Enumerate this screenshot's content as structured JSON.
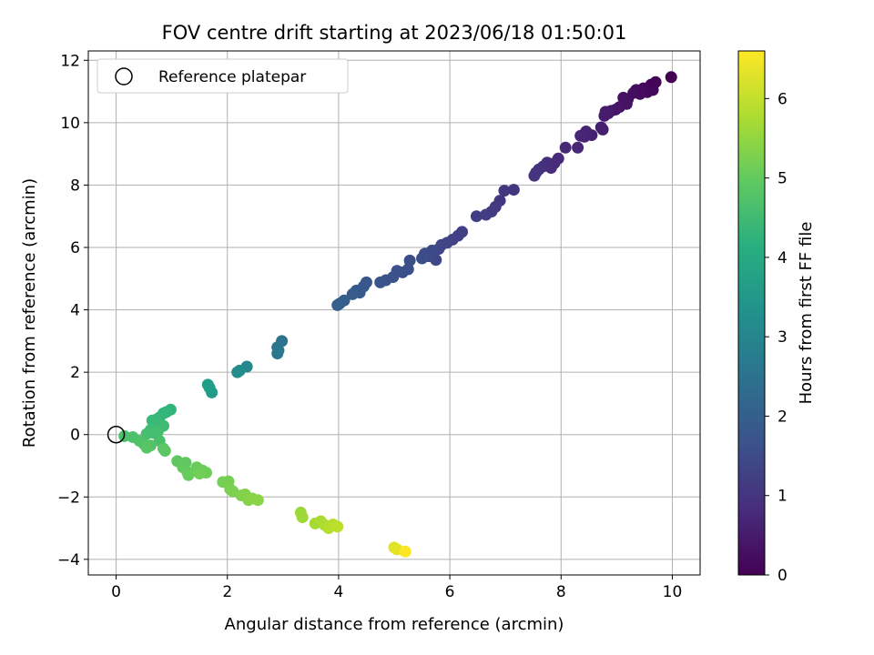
{
  "chart_data": {
    "type": "scatter",
    "title": "FOV centre drift starting at 2023/06/18 01:50:01",
    "xlabel": "Angular distance from reference (arcmin)",
    "ylabel": "Rotation from reference (arcmin)",
    "xlim": [
      -0.5,
      10.5
    ],
    "ylim": [
      -4.5,
      12.3
    ],
    "xticks": [
      0,
      2,
      4,
      6,
      8,
      10
    ],
    "yticks": [
      -4,
      -2,
      0,
      2,
      4,
      6,
      8,
      10,
      12
    ],
    "grid": true,
    "legend": {
      "position": "top-left",
      "entries": [
        "Reference platepar"
      ]
    },
    "reference_point": {
      "x": 0,
      "y": 0
    },
    "colorbar": {
      "label": "Hours from first FF file",
      "range": [
        0,
        6.6
      ],
      "ticks": [
        0,
        1,
        2,
        3,
        4,
        5,
        6
      ],
      "colormap": "viridis"
    },
    "points": [
      [
        9.98,
        11.46,
        0.0
      ],
      [
        9.7,
        11.3,
        0.03
      ],
      [
        9.62,
        11.22,
        0.06
      ],
      [
        9.65,
        11.05,
        0.09
      ],
      [
        9.55,
        10.98,
        0.12
      ],
      [
        9.48,
        11.1,
        0.15
      ],
      [
        9.42,
        10.92,
        0.18
      ],
      [
        9.35,
        11.05,
        0.21
      ],
      [
        9.3,
        10.95,
        0.24
      ],
      [
        9.2,
        10.75,
        0.27
      ],
      [
        9.12,
        10.8,
        0.3
      ],
      [
        9.18,
        10.6,
        0.33
      ],
      [
        9.05,
        10.5,
        0.36
      ],
      [
        8.98,
        10.42,
        0.39
      ],
      [
        8.9,
        10.38,
        0.42
      ],
      [
        8.85,
        10.3,
        0.45
      ],
      [
        8.78,
        10.22,
        0.48
      ],
      [
        8.8,
        10.35,
        0.51
      ],
      [
        8.72,
        9.85,
        0.54
      ],
      [
        8.75,
        9.78,
        0.57
      ],
      [
        8.55,
        9.6,
        0.6
      ],
      [
        8.45,
        9.72,
        0.63
      ],
      [
        8.42,
        9.55,
        0.66
      ],
      [
        8.35,
        9.58,
        0.69
      ],
      [
        8.3,
        9.2,
        0.72
      ],
      [
        8.08,
        9.2,
        0.75
      ],
      [
        7.95,
        8.85,
        0.78
      ],
      [
        7.88,
        8.7,
        0.81
      ],
      [
        7.82,
        8.55,
        0.84
      ],
      [
        7.75,
        8.72,
        0.87
      ],
      [
        7.68,
        8.6,
        0.9
      ],
      [
        7.6,
        8.5,
        0.93
      ],
      [
        7.55,
        8.4,
        0.96
      ],
      [
        7.52,
        8.3,
        0.99
      ],
      [
        7.15,
        7.85,
        1.02
      ],
      [
        6.98,
        7.82,
        1.05
      ],
      [
        6.9,
        7.5,
        1.08
      ],
      [
        6.82,
        7.3,
        1.11
      ],
      [
        6.75,
        7.15,
        1.14
      ],
      [
        6.65,
        7.05,
        1.17
      ],
      [
        6.48,
        7.0,
        1.2
      ],
      [
        6.22,
        6.5,
        1.23
      ],
      [
        6.15,
        6.38,
        1.26
      ],
      [
        6.05,
        6.25,
        1.29
      ],
      [
        5.95,
        6.15,
        1.32
      ],
      [
        5.85,
        6.08,
        1.35
      ],
      [
        5.8,
        5.95,
        1.38
      ],
      [
        5.75,
        5.6,
        1.41
      ],
      [
        5.68,
        5.9,
        1.44
      ],
      [
        5.62,
        5.72,
        1.47
      ],
      [
        5.55,
        5.8,
        1.5
      ],
      [
        5.5,
        5.65,
        1.53
      ],
      [
        5.28,
        5.58,
        1.56
      ],
      [
        5.25,
        5.3,
        1.59
      ],
      [
        5.15,
        5.2,
        1.62
      ],
      [
        5.05,
        5.25,
        1.65
      ],
      [
        4.98,
        5.05,
        1.68
      ],
      [
        4.85,
        4.95,
        1.71
      ],
      [
        4.75,
        4.88,
        1.74
      ],
      [
        4.5,
        4.88,
        1.77
      ],
      [
        4.45,
        4.75,
        1.8
      ],
      [
        4.38,
        4.55,
        1.83
      ],
      [
        4.32,
        4.62,
        1.86
      ],
      [
        4.25,
        4.5,
        1.89
      ],
      [
        4.1,
        4.3,
        1.92
      ],
      [
        4.02,
        4.2,
        1.95
      ],
      [
        3.98,
        4.15,
        1.98
      ],
      [
        2.98,
        3.0,
        2.5
      ],
      [
        2.92,
        2.7,
        2.55
      ],
      [
        2.9,
        2.8,
        2.6
      ],
      [
        2.9,
        2.6,
        2.65
      ],
      [
        2.35,
        2.18,
        3.1
      ],
      [
        2.22,
        2.05,
        3.15
      ],
      [
        2.18,
        2.0,
        3.2
      ],
      [
        1.72,
        1.35,
        3.6
      ],
      [
        1.68,
        1.5,
        3.65
      ],
      [
        1.65,
        1.6,
        3.7
      ],
      [
        0.98,
        0.8,
        4.3
      ],
      [
        0.9,
        0.72,
        4.33
      ],
      [
        0.85,
        0.68,
        4.36
      ],
      [
        0.78,
        0.55,
        4.39
      ],
      [
        0.72,
        0.48,
        4.42
      ],
      [
        0.65,
        0.45,
        4.45
      ],
      [
        0.72,
        0.3,
        4.48
      ],
      [
        0.85,
        0.28,
        4.51
      ],
      [
        0.62,
        0.15,
        4.54
      ],
      [
        0.68,
        0.05,
        4.57
      ],
      [
        0.75,
        0.1,
        4.6
      ],
      [
        0.55,
        0.02,
        4.63
      ],
      [
        0.78,
        -0.2,
        4.66
      ],
      [
        0.15,
        -0.05,
        4.69
      ],
      [
        0.3,
        -0.08,
        4.72
      ],
      [
        0.42,
        -0.2,
        4.75
      ],
      [
        0.5,
        -0.3,
        4.78
      ],
      [
        0.62,
        -0.35,
        4.81
      ],
      [
        0.55,
        -0.42,
        4.84
      ],
      [
        0.85,
        -0.45,
        4.87
      ],
      [
        0.88,
        -0.52,
        4.9
      ],
      [
        1.1,
        -0.85,
        4.93
      ],
      [
        1.25,
        -0.9,
        4.96
      ],
      [
        1.2,
        -1.05,
        4.99
      ],
      [
        1.28,
        -1.2,
        5.02
      ],
      [
        1.3,
        -1.3,
        5.05
      ],
      [
        1.45,
        -1.05,
        5.08
      ],
      [
        1.55,
        -1.15,
        5.11
      ],
      [
        1.62,
        -1.22,
        5.14
      ],
      [
        1.5,
        -1.25,
        5.17
      ],
      [
        1.92,
        -1.52,
        5.2
      ],
      [
        2.02,
        -1.5,
        5.23
      ],
      [
        2.05,
        -1.75,
        5.26
      ],
      [
        2.1,
        -1.82,
        5.29
      ],
      [
        2.25,
        -1.95,
        5.32
      ],
      [
        2.32,
        -1.92,
        5.35
      ],
      [
        2.38,
        -2.1,
        5.38
      ],
      [
        2.45,
        -2.05,
        5.41
      ],
      [
        2.55,
        -2.1,
        5.44
      ],
      [
        3.32,
        -2.5,
        5.6
      ],
      [
        3.35,
        -2.65,
        5.65
      ],
      [
        3.58,
        -2.85,
        5.7
      ],
      [
        3.68,
        -2.78,
        5.75
      ],
      [
        3.75,
        -2.9,
        5.8
      ],
      [
        3.82,
        -3.0,
        5.85
      ],
      [
        3.9,
        -2.88,
        5.9
      ],
      [
        3.98,
        -2.95,
        5.95
      ],
      [
        5.0,
        -3.62,
        6.3
      ],
      [
        5.05,
        -3.68,
        6.35
      ],
      [
        5.2,
        -3.75,
        6.6
      ]
    ]
  }
}
